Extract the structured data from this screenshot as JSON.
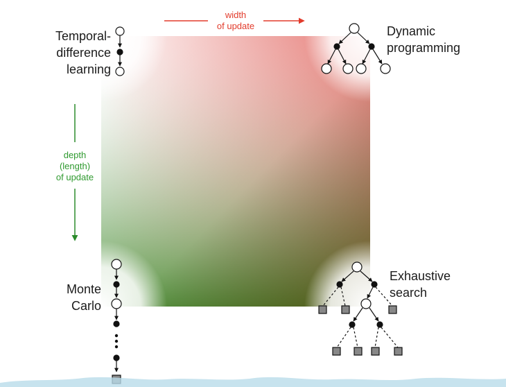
{
  "width_axis": {
    "label_line1": "width",
    "label_line2": "of update",
    "color": "#e23b2b"
  },
  "depth_axis": {
    "label_line1": "depth",
    "label_line2": "(length)",
    "label_line3": "of update",
    "color": "#2f9a2f"
  },
  "corners": {
    "top_left": {
      "line1": "Temporal-",
      "line2": "difference",
      "line3": "learning"
    },
    "top_right": {
      "line1": "Dynamic",
      "line2": "programming"
    },
    "bottom_left": {
      "line1": "Monte",
      "line2": "Carlo"
    },
    "bottom_right": {
      "line1": "Exhaustive",
      "line2": "search"
    }
  },
  "colors": {
    "gradient_top_left": "#ffffff",
    "gradient_top_right": "#f08a84",
    "gradient_bottom_left": "#4aa04a",
    "gradient_bottom_right": "#a14a12"
  }
}
